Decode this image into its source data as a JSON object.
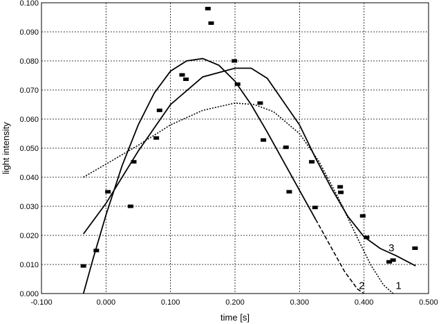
{
  "chart_data": {
    "type": "scatter",
    "xlabel": "time [s]",
    "ylabel": "light intensity",
    "xlim": [
      -0.1,
      0.5
    ],
    "ylim": [
      0.0,
      0.1
    ],
    "grid": true,
    "x_ticks": [
      "-0.100",
      "0.000",
      "0.100",
      "0.200",
      "0.300",
      "0.400",
      "0.500"
    ],
    "y_ticks": [
      "0.000",
      "0.010",
      "0.020",
      "0.030",
      "0.040",
      "0.050",
      "0.060",
      "0.070",
      "0.080",
      "0.090",
      "0.100"
    ],
    "scatter_points": [
      {
        "x": -0.035,
        "y": 0.0095
      },
      {
        "x": -0.015,
        "y": 0.0148
      },
      {
        "x": 0.003,
        "y": 0.035
      },
      {
        "x": 0.038,
        "y": 0.03
      },
      {
        "x": 0.043,
        "y": 0.0453
      },
      {
        "x": 0.078,
        "y": 0.0535
      },
      {
        "x": 0.083,
        "y": 0.063
      },
      {
        "x": 0.118,
        "y": 0.0752
      },
      {
        "x": 0.124,
        "y": 0.0737
      },
      {
        "x": 0.158,
        "y": 0.098
      },
      {
        "x": 0.163,
        "y": 0.093
      },
      {
        "x": 0.199,
        "y": 0.08
      },
      {
        "x": 0.204,
        "y": 0.072
      },
      {
        "x": 0.239,
        "y": 0.0655
      },
      {
        "x": 0.244,
        "y": 0.0528
      },
      {
        "x": 0.279,
        "y": 0.0503
      },
      {
        "x": 0.284,
        "y": 0.035
      },
      {
        "x": 0.319,
        "y": 0.0453
      },
      {
        "x": 0.324,
        "y": 0.0296
      },
      {
        "x": 0.363,
        "y": 0.0367
      },
      {
        "x": 0.364,
        "y": 0.0348
      },
      {
        "x": 0.398,
        "y": 0.0267
      },
      {
        "x": 0.404,
        "y": 0.0193
      },
      {
        "x": 0.439,
        "y": 0.0109
      },
      {
        "x": 0.445,
        "y": 0.0115
      },
      {
        "x": 0.479,
        "y": 0.0156
      }
    ],
    "curves": [
      {
        "label": "2",
        "style": "solid-dashed",
        "points": [
          {
            "x": -0.035,
            "y": 0.0
          },
          {
            "x": -0.02,
            "y": 0.012
          },
          {
            "x": 0.0,
            "y": 0.027
          },
          {
            "x": 0.025,
            "y": 0.044
          },
          {
            "x": 0.05,
            "y": 0.058
          },
          {
            "x": 0.075,
            "y": 0.069
          },
          {
            "x": 0.1,
            "y": 0.0765
          },
          {
            "x": 0.125,
            "y": 0.08
          },
          {
            "x": 0.15,
            "y": 0.0808
          },
          {
            "x": 0.175,
            "y": 0.0785
          },
          {
            "x": 0.2,
            "y": 0.073
          },
          {
            "x": 0.225,
            "y": 0.065
          },
          {
            "x": 0.25,
            "y": 0.0555
          },
          {
            "x": 0.275,
            "y": 0.0455
          },
          {
            "x": 0.3,
            "y": 0.0355
          },
          {
            "x": 0.325,
            "y": 0.0255
          },
          {
            "x": 0.35,
            "y": 0.0155
          },
          {
            "x": 0.37,
            "y": 0.0075
          },
          {
            "x": 0.39,
            "y": 0.0015
          },
          {
            "x": 0.4,
            "y": 0.0
          }
        ]
      },
      {
        "label": "1",
        "style": "dotted",
        "points": [
          {
            "x": -0.035,
            "y": 0.04
          },
          {
            "x": 0.0,
            "y": 0.0445
          },
          {
            "x": 0.05,
            "y": 0.051
          },
          {
            "x": 0.1,
            "y": 0.058
          },
          {
            "x": 0.15,
            "y": 0.063
          },
          {
            "x": 0.2,
            "y": 0.0655
          },
          {
            "x": 0.23,
            "y": 0.065
          },
          {
            "x": 0.26,
            "y": 0.0625
          },
          {
            "x": 0.3,
            "y": 0.055
          },
          {
            "x": 0.33,
            "y": 0.0455
          },
          {
            "x": 0.36,
            "y": 0.033
          },
          {
            "x": 0.39,
            "y": 0.019
          },
          {
            "x": 0.41,
            "y": 0.01
          },
          {
            "x": 0.43,
            "y": 0.003
          },
          {
            "x": 0.445,
            "y": 0.0
          }
        ]
      },
      {
        "label": "3",
        "style": "solid",
        "points": [
          {
            "x": -0.035,
            "y": 0.0205
          },
          {
            "x": 0.0,
            "y": 0.031
          },
          {
            "x": 0.05,
            "y": 0.049
          },
          {
            "x": 0.1,
            "y": 0.065
          },
          {
            "x": 0.15,
            "y": 0.0745
          },
          {
            "x": 0.2,
            "y": 0.0775
          },
          {
            "x": 0.225,
            "y": 0.0775
          },
          {
            "x": 0.25,
            "y": 0.074
          },
          {
            "x": 0.3,
            "y": 0.058
          },
          {
            "x": 0.325,
            "y": 0.0465
          },
          {
            "x": 0.35,
            "y": 0.036
          },
          {
            "x": 0.375,
            "y": 0.0265
          },
          {
            "x": 0.4,
            "y": 0.0195
          },
          {
            "x": 0.425,
            "y": 0.0155
          },
          {
            "x": 0.45,
            "y": 0.013
          },
          {
            "x": 0.48,
            "y": 0.0095
          }
        ]
      }
    ],
    "curve_labels": [
      {
        "text": "2",
        "x": 0.392,
        "y": 0.0015
      },
      {
        "text": "1",
        "x": 0.449,
        "y": 0.0015
      },
      {
        "text": "3",
        "x": 0.438,
        "y": 0.0145
      }
    ]
  }
}
